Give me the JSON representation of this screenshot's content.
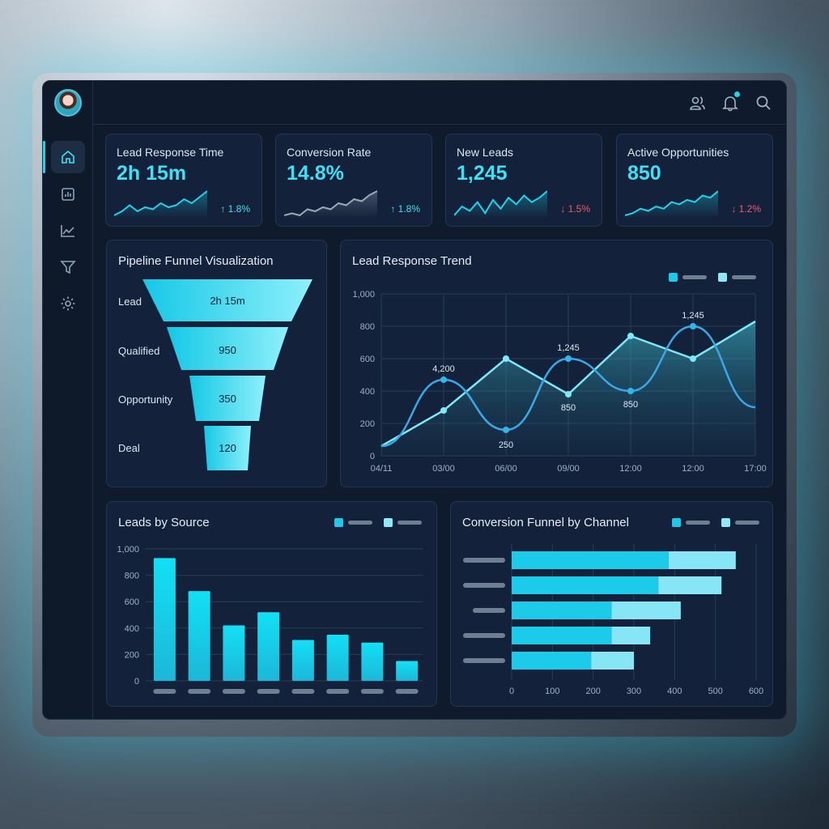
{
  "nav": {
    "items": [
      {
        "name": "home",
        "active": true
      },
      {
        "name": "reports",
        "active": false
      },
      {
        "name": "trends",
        "active": false
      },
      {
        "name": "filter",
        "active": false
      },
      {
        "name": "settings",
        "active": false
      }
    ]
  },
  "topbar": {
    "icons": [
      "users-icon",
      "bell-icon",
      "search-icon"
    ],
    "has_notification": true
  },
  "kpis": [
    {
      "label": "Lead Response Time",
      "value": "2h 15m",
      "delta": "↑ 1.8%",
      "direction": "up",
      "spark": [
        4,
        6,
        9,
        6,
        8,
        7,
        10,
        8,
        9,
        12,
        10,
        13,
        16
      ]
    },
    {
      "label": "Conversion Rate",
      "value": "14.8%",
      "delta": "↑ 1.8%",
      "direction": "up",
      "spark": [
        4,
        5,
        4,
        7,
        6,
        8,
        7,
        10,
        9,
        12,
        11,
        14,
        16
      ]
    },
    {
      "label": "New Leads",
      "value": "1,245",
      "delta": "↓ 1.5%",
      "direction": "down",
      "spark": [
        4,
        8,
        6,
        10,
        5,
        11,
        7,
        12,
        9,
        13,
        10,
        12,
        15
      ]
    },
    {
      "label": "Active Opportunities",
      "value": "850",
      "delta": "↓ 1.2%",
      "direction": "down",
      "spark": [
        4,
        5,
        7,
        6,
        8,
        7,
        10,
        9,
        11,
        10,
        13,
        12,
        15
      ]
    }
  ],
  "funnel": {
    "title": "Pipeline Funnel Visualization",
    "stages": [
      {
        "label": "Lead",
        "value": "2h 15m"
      },
      {
        "label": "Qualified",
        "value": "950"
      },
      {
        "label": "Opportunity",
        "value": "350"
      },
      {
        "label": "Deal",
        "value": "120"
      }
    ]
  },
  "colors": {
    "accent": "#22d3ee",
    "accent_light": "#7ee8f8",
    "line_dark": "#3aa8e8",
    "down": "#f05a6a"
  },
  "chart_data": [
    {
      "type": "line",
      "title": "Lead Response Trend",
      "x": [
        "04/11",
        "03/00",
        "06/00",
        "09/00",
        "12:00",
        "12:00",
        "17:00"
      ],
      "ylim": [
        0,
        1000
      ],
      "yticks": [
        "0",
        "200",
        "400",
        "600",
        "800",
        "1,000"
      ],
      "grid": true,
      "legend": "top-right",
      "series": [
        {
          "values": [
            60,
            470,
            160,
            600,
            400,
            800,
            300
          ]
        },
        {
          "values": [
            60,
            280,
            600,
            380,
            740,
            600,
            830
          ],
          "filled": true
        }
      ],
      "annotations": [
        "4,200",
        "250",
        "1,245",
        "850",
        "850",
        "1,245"
      ]
    },
    {
      "type": "bar",
      "title": "Leads by Source",
      "categories": [
        "",
        "",
        "",
        "",
        "",
        "",
        "",
        ""
      ],
      "values": [
        930,
        680,
        420,
        520,
        310,
        350,
        290,
        150
      ],
      "ylim": [
        0,
        1000
      ],
      "yticks": [
        "0",
        "200",
        "400",
        "600",
        "800",
        "1,000"
      ],
      "grid": true,
      "legend": "top-right"
    },
    {
      "type": "bar",
      "orientation": "horizontal",
      "stacked": true,
      "title": "Conversion Funnel by Channel",
      "categories": [
        "",
        "",
        "",
        "",
        ""
      ],
      "xlim": [
        0,
        600
      ],
      "xticks": [
        "0",
        "100",
        "200",
        "300",
        "400",
        "500",
        "600"
      ],
      "series": [
        {
          "values": [
            385,
            360,
            245,
            245,
            195
          ]
        },
        {
          "values": [
            165,
            155,
            170,
            95,
            105
          ]
        }
      ],
      "grid": true,
      "legend": "top-right"
    }
  ]
}
